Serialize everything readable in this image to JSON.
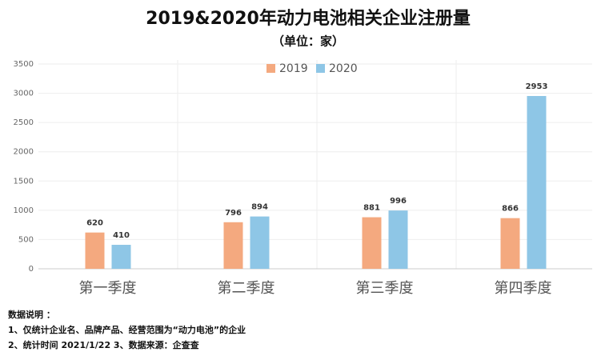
{
  "chart_data": {
    "type": "bar",
    "title": "2019&2020年动力电池相关企业注册量",
    "subtitle": "（单位：家）",
    "categories": [
      "第一季度",
      "第二季度",
      "第三季度",
      "第四季度"
    ],
    "series": [
      {
        "name": "2019",
        "color": "#f4a97f",
        "values": [
          620,
          796,
          881,
          866
        ]
      },
      {
        "name": "2020",
        "color": "#8ec6e6",
        "values": [
          410,
          894,
          996,
          2953
        ]
      }
    ],
    "ylim": [
      0,
      3500
    ],
    "yticks": [
      0,
      500,
      1000,
      1500,
      2000,
      2500,
      3000,
      3500
    ],
    "grid": true,
    "legend": "top",
    "notes": [
      "数据说明 ：",
      "1、仅统计企业名、品牌产品、经营范围为“动力电池”的企业",
      "2、统计时间  2021/1/22   3、数据来源：企查查"
    ]
  }
}
